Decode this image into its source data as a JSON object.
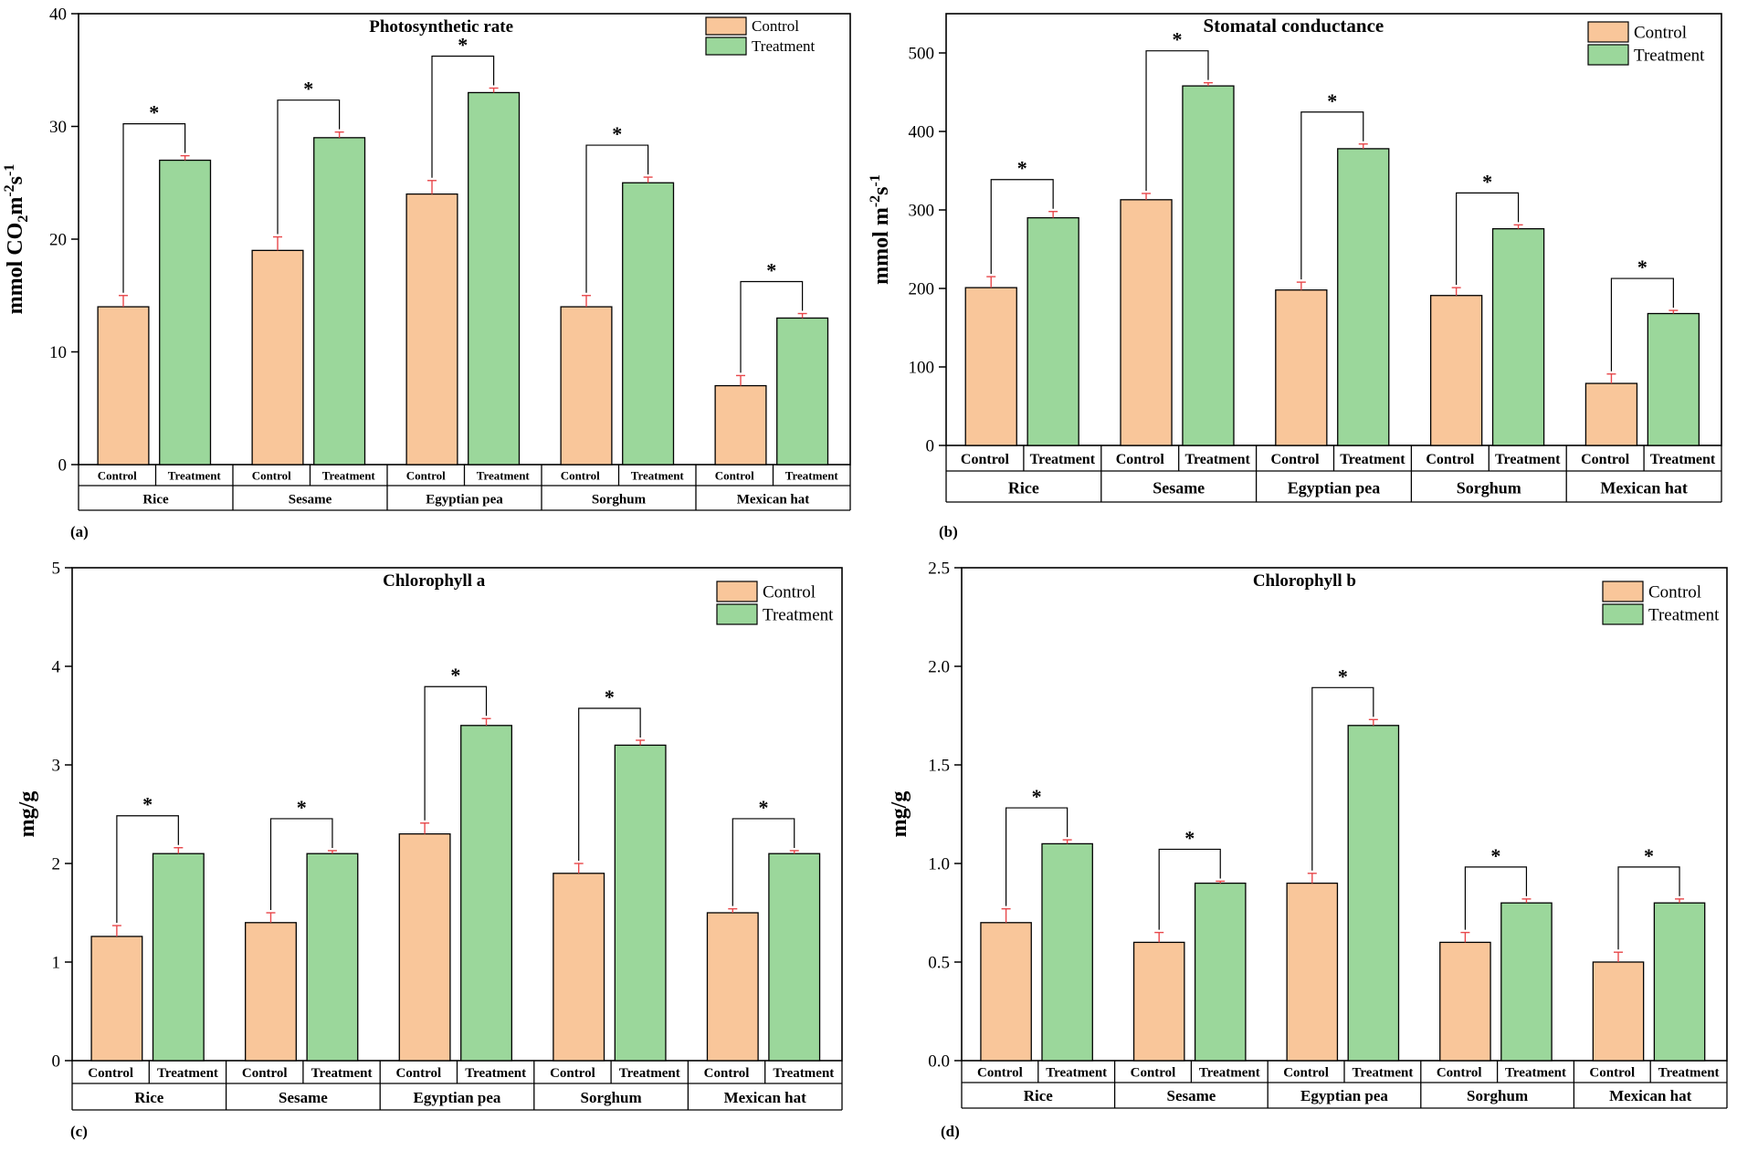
{
  "colors": {
    "control_fill": "#f9c69a",
    "treatment_fill": "#9bd79b",
    "error_bar": "#e8474a",
    "axis": "#000000"
  },
  "legend": {
    "control": "Control",
    "treatment": "Treatment"
  },
  "significance_marker": "*",
  "chart_data": [
    {
      "panel": "(a)",
      "type": "bar",
      "title": "Photosynthetic rate",
      "ylabel_parts": [
        "mmol CO",
        "2",
        "m",
        "-2",
        "s",
        "-1"
      ],
      "ylim": [
        0,
        40
      ],
      "yticks": [
        "0",
        "10",
        "20",
        "30",
        "40"
      ],
      "ytick_values": [
        0,
        10,
        20,
        30,
        40
      ],
      "categories": [
        "Rice",
        "Sesame",
        "Egyptian pea",
        "Sorghum",
        "Mexican hat"
      ],
      "sub_labels": [
        "Control",
        "Treatment"
      ],
      "series": [
        {
          "name": "Control",
          "values": [
            14,
            19,
            24,
            14,
            7
          ],
          "errors": [
            1.0,
            1.2,
            1.2,
            1.0,
            0.9
          ]
        },
        {
          "name": "Treatment",
          "values": [
            27,
            29,
            33,
            25,
            13
          ],
          "errors": [
            0.4,
            0.5,
            0.4,
            0.5,
            0.4
          ]
        }
      ]
    },
    {
      "panel": "(b)",
      "type": "bar",
      "title": "Stomatal conductance",
      "ylabel_parts": [
        "mmol m",
        "-2",
        "s",
        "-1"
      ],
      "ylim": [
        0,
        550
      ],
      "yticks": [
        "0",
        "100",
        "200",
        "300",
        "400",
        "500"
      ],
      "ytick_values": [
        0,
        100,
        200,
        300,
        400,
        500
      ],
      "categories": [
        "Rice",
        "Sesame",
        "Egyptian pea",
        "Sorghum",
        "Mexican hat"
      ],
      "sub_labels": [
        "Control",
        "Treatment"
      ],
      "series": [
        {
          "name": "Control",
          "values": [
            201,
            313,
            198,
            191,
            79
          ],
          "errors": [
            14,
            8,
            10,
            10,
            12
          ]
        },
        {
          "name": "Treatment",
          "values": [
            290,
            458,
            378,
            276,
            168
          ],
          "errors": [
            8,
            4,
            6,
            5,
            4
          ]
        }
      ]
    },
    {
      "panel": "(c)",
      "type": "bar",
      "title": "Chlorophyll a",
      "ylabel_parts": [
        "mg/g"
      ],
      "ylim": [
        0,
        5
      ],
      "yticks": [
        "0",
        "1",
        "2",
        "3",
        "4",
        "5"
      ],
      "ytick_values": [
        0,
        1,
        2,
        3,
        4,
        5
      ],
      "categories": [
        "Rice",
        "Sesame",
        "Egyptian pea",
        "Sorghum",
        "Mexican hat"
      ],
      "sub_labels": [
        "Control",
        "Treatment"
      ],
      "series": [
        {
          "name": "Control",
          "values": [
            1.26,
            1.4,
            2.3,
            1.9,
            1.5
          ],
          "errors": [
            0.11,
            0.1,
            0.11,
            0.1,
            0.04
          ]
        },
        {
          "name": "Treatment",
          "values": [
            2.1,
            2.1,
            3.4,
            3.2,
            2.1
          ],
          "errors": [
            0.06,
            0.03,
            0.07,
            0.05,
            0.03
          ]
        }
      ]
    },
    {
      "panel": "(d)",
      "type": "bar",
      "title": "Chlorophyll b",
      "ylabel_parts": [
        "mg/g"
      ],
      "ylim": [
        0,
        2.5
      ],
      "yticks": [
        "0.0",
        "0.5",
        "1.0",
        "1.5",
        "2.0",
        "2.5"
      ],
      "ytick_values": [
        0,
        0.5,
        1.0,
        1.5,
        2.0,
        2.5
      ],
      "categories": [
        "Rice",
        "Sesame",
        "Egyptian pea",
        "Sorghum",
        "Mexican hat"
      ],
      "sub_labels": [
        "Control",
        "Treatment"
      ],
      "series": [
        {
          "name": "Control",
          "values": [
            0.7,
            0.6,
            0.9,
            0.6,
            0.5
          ],
          "errors": [
            0.07,
            0.05,
            0.05,
            0.05,
            0.05
          ]
        },
        {
          "name": "Treatment",
          "values": [
            1.1,
            0.9,
            1.7,
            0.8,
            0.8
          ],
          "errors": [
            0.02,
            0.01,
            0.03,
            0.02,
            0.02
          ]
        }
      ]
    }
  ]
}
